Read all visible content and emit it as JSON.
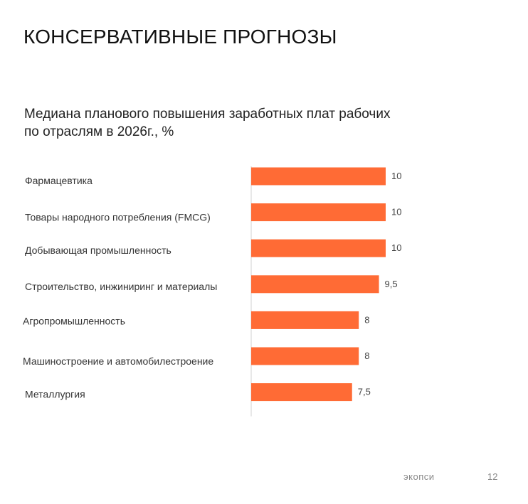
{
  "slide": {
    "title": "КОНСЕРВАТИВНЫЕ ПРОГНОЗЫ",
    "subtitle_line1": "Медиана планового повышения заработных плат  рабочих",
    "subtitle_line2": "по отраслям в 2026г., %",
    "logo": "экопси",
    "page_number": "12"
  },
  "chart_data": {
    "type": "bar",
    "orientation": "horizontal",
    "title": "Медиана планового повышения заработных плат  рабочих по отраслям в 2026г., %",
    "categories": [
      "Фармацевтика",
      "Товары народного потребления (FMCG)",
      "Добывающая промышленность",
      "Строительство, инжиниринг и материалы",
      "Агропромышленность",
      "Машиностроение и автомобилестроение",
      "Металлургия"
    ],
    "values": [
      10,
      10,
      10,
      9.5,
      8,
      8,
      7.5
    ],
    "data_labels": [
      "10",
      "10",
      "10",
      "9,5",
      "8",
      "8",
      "7,5"
    ],
    "xlim": [
      0,
      10
    ],
    "grid": false,
    "bar_color": "#FF6B35"
  }
}
